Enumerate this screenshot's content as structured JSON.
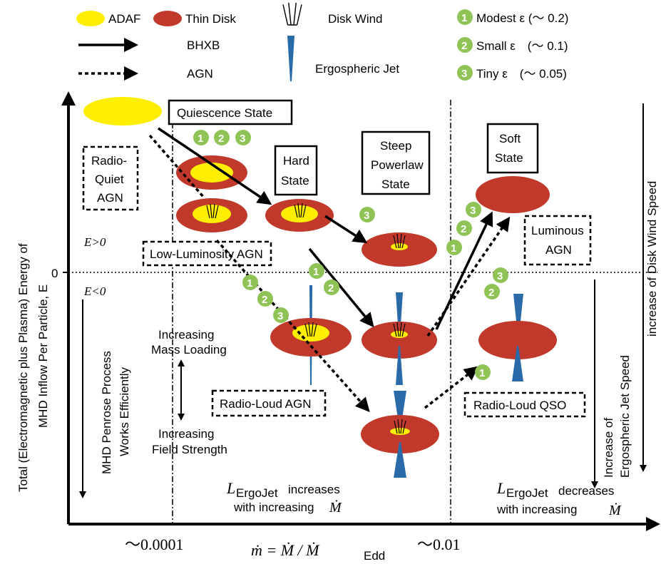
{
  "colors": {
    "adaf": "#ffee00",
    "thin_disk": "#c0392b",
    "jet": "#2a6aa8",
    "badge": "#8fc356"
  },
  "legend": {
    "adaf": "ADAF",
    "thin_disk": "Thin Disk",
    "disk_wind": "Disk Wind",
    "bhxb": "BHXB",
    "agn": "AGN",
    "jet": "Ergospheric Jet",
    "eps1_num": "1",
    "eps1": "Modest ε (～ 0.2)",
    "eps2_num": "2",
    "eps2": "Small ε　(～ 0.1)",
    "eps3_num": "3",
    "eps3": "Tiny ε　(～ 0.05)"
  },
  "states": {
    "quiescence": "Quiescence State",
    "hard_1": "Hard",
    "hard_2": "State",
    "steep_1": "Steep",
    "steep_2": "Powerlaw",
    "steep_3": "State",
    "soft_1": "Soft",
    "soft_2": "State",
    "rq_agn_1": "Radio-",
    "rq_agn_2": "Quiet",
    "rq_agn_3": "AGN",
    "ll_agn": "Low-Luminosity AGN",
    "rl_agn": "Radio-Loud AGN",
    "lum_agn_1": "Luminous",
    "lum_agn_2": "AGN",
    "rl_qso": "Radio-Loud QSO"
  },
  "annotations": {
    "e_pos": "E>0",
    "e_neg": "E<0",
    "zero": "0",
    "mass_loading_1": "Increasing",
    "mass_loading_2": "Mass Loading",
    "field_strength_1": "Increasing",
    "field_strength_2": "Field Strength",
    "penrose_1": "MHD Penrose Process",
    "penrose_2": "Works Efficiently",
    "ergo_speed_1": "Increase of",
    "ergo_speed_2": "Ergospheric Jet Speed",
    "wind_speed": "increase  of Disk Wind Speed",
    "l_left_1": "increases",
    "l_left_2": "with increasing",
    "l_right_1": "decreases",
    "l_right_2": "with increasing",
    "l_sym": "L",
    "l_sub": "ErgoJet",
    "mdot": "Ṁ"
  },
  "axes": {
    "y_label_1": "Total (Electromagnetic plus Plasma) Energy of",
    "y_label_2": "MHD Inflow Per Particle, E",
    "x_tick_1": "～0.0001",
    "x_tick_2": "～0.01",
    "x_label": "ṁ = Ṁ / Ṁ",
    "x_label_sub": "Edd"
  }
}
